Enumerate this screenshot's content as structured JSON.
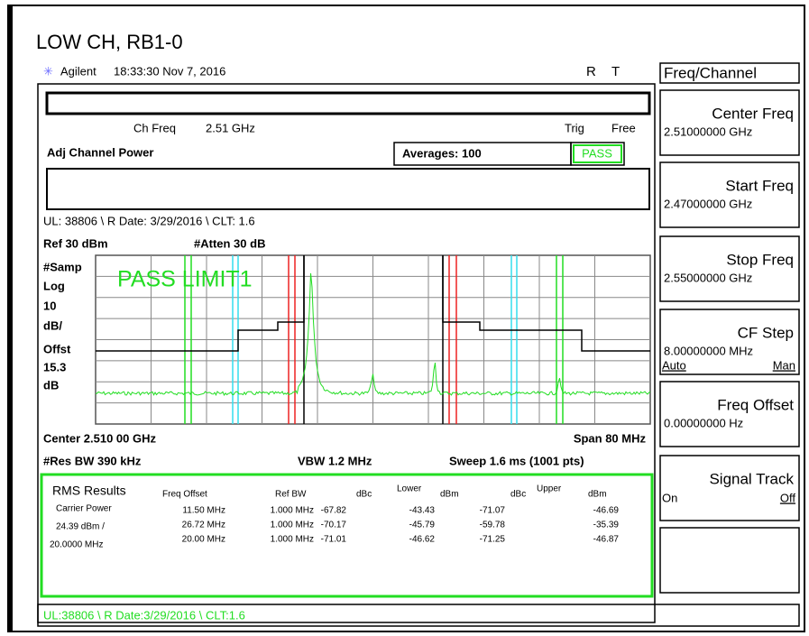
{
  "header": {
    "title": "LOW CH, RB1-0",
    "brand": "Agilent",
    "timestamp": "18:33:30 Nov 7, 2016",
    "flags": [
      "R",
      "T"
    ]
  },
  "screen": {
    "ch_freq_label": "Ch Freq",
    "ch_freq": "2.51 GHz",
    "trig_label": "Trig",
    "trig": "Free",
    "measurement": "Adj Channel Power",
    "averages": "Averages: 100",
    "verdict": "PASS",
    "note": "UL: 38806 \\ R Date: 3/29/2016 \\ CLT: 1.6",
    "ref": "Ref 30 dBm",
    "atten": "#Atten 30 dB",
    "side_labels": [
      "#Samp",
      "Log",
      "10",
      "dB/",
      "Offst",
      "15.3",
      "dB"
    ],
    "limit_text": "PASS LIMIT1",
    "center": "Center 2.510 00 GHz",
    "span": "Span 80 MHz",
    "res_bw": "#Res BW 390 kHz",
    "vbw": "VBW 1.2 MHz",
    "sweep": "Sweep 1.6 ms (1001 pts)"
  },
  "results": {
    "title": "RMS Results",
    "carrier_label": "Carrier Power",
    "carrier_power": "24.39 dBm  /",
    "carrier_bw": "20.0000 MHz",
    "lower": "Lower",
    "upper": "Upper",
    "columns": [
      "Freq Offset",
      "Ref BW",
      "dBc",
      "dBm",
      "dBc",
      "dBm"
    ],
    "rows": [
      [
        "11.50 MHz",
        "1.000 MHz",
        "-67.82",
        "-43.43",
        "-71.07",
        "-46.69"
      ],
      [
        "26.72 MHz",
        "1.000 MHz",
        "-70.17",
        "-45.79",
        "-59.78",
        "-35.39"
      ],
      [
        "20.00 MHz",
        "1.000 MHz",
        "-71.01",
        "-46.62",
        "-71.25",
        "-46.87"
      ]
    ]
  },
  "status": "UL:38806 \\ R Date:3/29/2016 \\ CLT:1.6",
  "menu": {
    "title": "Freq/Channel",
    "keys": [
      {
        "label": "Center Freq",
        "value": "2.51000000 GHz"
      },
      {
        "label": "Start Freq",
        "value": "2.47000000 GHz"
      },
      {
        "label": "Stop Freq",
        "value": "2.55000000 GHz"
      },
      {
        "label": "CF Step",
        "value": "8.00000000 MHz",
        "options": [
          "Auto",
          "Man"
        ]
      },
      {
        "label": "Freq Offset",
        "value": "0.00000000  Hz"
      },
      {
        "label": "Signal Track",
        "options": [
          "On",
          "Off"
        ]
      }
    ]
  }
}
